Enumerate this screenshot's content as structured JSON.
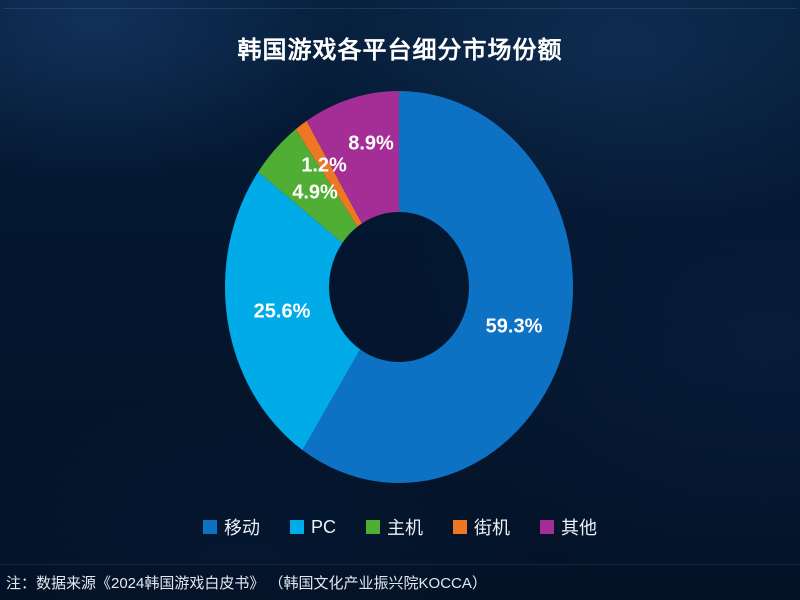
{
  "title": "韩国游戏各平台细分市场份额",
  "background_color": "#04162e",
  "chart_data": {
    "type": "pie",
    "style": "donut",
    "title": "韩国游戏各平台细分市场份额",
    "categories": [
      "移动",
      "PC",
      "主机",
      "街机",
      "其他"
    ],
    "values": [
      59.3,
      25.6,
      4.9,
      1.2,
      8.9
    ],
    "unit": "%",
    "legend_position": "bottom",
    "hole_background": "#07182f",
    "slices": [
      {
        "key": "mobile",
        "label": "移动",
        "value": 59.3,
        "display": "59.3%",
        "color": "#0d72c4"
      },
      {
        "key": "pc",
        "label": "PC",
        "value": 25.6,
        "display": "25.6%",
        "color": "#00abe8"
      },
      {
        "key": "console",
        "label": "主机",
        "value": 4.9,
        "display": "4.9%",
        "color": "#4fae33"
      },
      {
        "key": "arcade",
        "label": "街机",
        "value": 1.2,
        "display": "1.2%",
        "color": "#ee7723"
      },
      {
        "key": "other",
        "label": "其他",
        "value": 8.9,
        "display": "8.9%",
        "color": "#a52e96"
      }
    ]
  },
  "footer": {
    "note": "注：数据来源《2024韩国游戏白皮书》 （韩国文化产业振兴院KOCCA）"
  }
}
